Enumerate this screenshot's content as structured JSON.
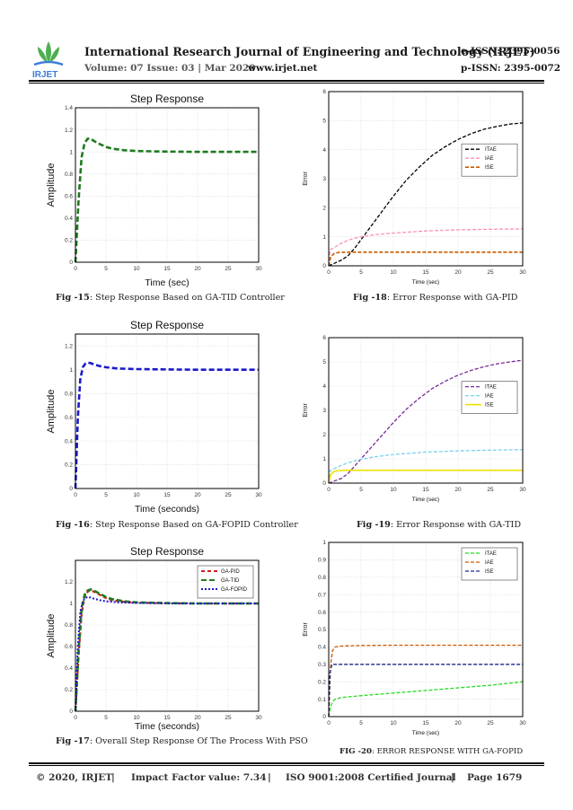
{
  "header": {
    "journal_title": "International Research Journal of Engineering and Technology (IRJET)",
    "e_issn": "e-ISSN: 2395-0056",
    "p_issn": "p-ISSN: 2395-0072",
    "volume": "Volume: 07 Issue: 03 | Mar 2020",
    "website": "www.irjet.net",
    "logo_text": "IRJET"
  },
  "captions": {
    "fig15_label": "Fig -15",
    "fig15_text": ": Step Response Based on GA-TID Controller",
    "fig16_label": "Fig -16",
    "fig16_text": ": Step Response Based on GA-FOPID Controller",
    "fig17_label": "Fig -17",
    "fig17_text": ": Overall Step Response Of The Process With PSO",
    "fig18_label": "Fig -18",
    "fig18_text": ": Error Response  with GA-PID",
    "fig19_label": "Fig -19",
    "fig19_text": ": Error Response  with GA-TID",
    "fig20_label": "Fig -20",
    "fig20_text": ": Error Response  with GA-FOPID"
  },
  "footer": {
    "copyright": "© 2020, IRJET",
    "sep1": "|",
    "impact": "Impact Factor value: 7.34",
    "sep2": "|",
    "iso": "ISO 9001:2008 Certified Journal",
    "sep3": "|",
    "page": "Page 1679"
  },
  "colors": {
    "green": "#1e7a1e",
    "blue": "#1a1acc",
    "red": "#cc2020",
    "black": "#000000",
    "pink": "#ff8fbf",
    "orange": "#c85a00",
    "purple": "#7a2a9a",
    "cyan": "#7ad0f0",
    "yellow": "#f0e000",
    "lime": "#22dd22",
    "navy": "#1a2a8a"
  },
  "chart_data": [
    {
      "id": "fig15",
      "type": "line",
      "title": "Step Response",
      "xlabel": "Time (sec)",
      "ylabel": "Amplitude",
      "xlim": [
        0,
        30
      ],
      "ylim": [
        0,
        1.4
      ],
      "xticks": [
        0,
        5,
        10,
        15,
        20,
        25,
        30
      ],
      "yticks": [
        0,
        0.2,
        0.4,
        0.6,
        0.8,
        1,
        1.2,
        1.4
      ],
      "grid": true,
      "legend": "none",
      "series": [
        {
          "color": "#1e7a1e",
          "dash": "6,3",
          "width": 2.6,
          "x": [
            0,
            0.5,
            1,
            1.5,
            2,
            2.5,
            3,
            4,
            5,
            6,
            8,
            10,
            15,
            20,
            25,
            30
          ],
          "y": [
            0,
            0.55,
            0.95,
            1.08,
            1.12,
            1.12,
            1.1,
            1.07,
            1.045,
            1.03,
            1.015,
            1.008,
            1.003,
            1.0,
            1.0,
            1.0
          ]
        }
      ]
    },
    {
      "id": "fig16",
      "type": "line",
      "title": "Step Response",
      "xlabel": "Time (seconds)",
      "ylabel": "Amplitude",
      "xlim": [
        0,
        30
      ],
      "ylim": [
        0,
        1.3
      ],
      "xticks": [
        0,
        5,
        10,
        15,
        20,
        25,
        30
      ],
      "yticks": [
        0,
        0.2,
        0.4,
        0.6,
        0.8,
        1,
        1.2
      ],
      "grid": true,
      "legend": "none",
      "series": [
        {
          "color": "#1a1acc",
          "dash": "6,3",
          "width": 2.6,
          "x": [
            0,
            0.4,
            0.8,
            1.2,
            1.6,
            2,
            2.5,
            3,
            4,
            5,
            7,
            10,
            15,
            20,
            25,
            30
          ],
          "y": [
            0,
            0.6,
            0.92,
            1.02,
            1.05,
            1.06,
            1.055,
            1.045,
            1.03,
            1.02,
            1.01,
            1.005,
            1.002,
            1.0,
            1.0,
            1.0
          ]
        }
      ]
    },
    {
      "id": "fig17",
      "type": "line",
      "title": "Step Response",
      "xlabel": "Time (seconds)",
      "ylabel": "Amplitude",
      "xlim": [
        0,
        30
      ],
      "ylim": [
        0,
        1.4
      ],
      "xticks": [
        0,
        5,
        10,
        15,
        20,
        25,
        30
      ],
      "yticks": [
        0,
        0.2,
        0.4,
        0.6,
        0.8,
        1,
        1.2
      ],
      "grid": true,
      "legend": "top-right",
      "series": [
        {
          "name": "GA-PID",
          "color": "#cc2020",
          "dash": "4,3",
          "width": 2.2,
          "x": [
            0,
            0.5,
            1,
            1.5,
            2,
            2.5,
            3,
            4,
            5,
            6,
            8,
            10,
            15,
            20,
            25,
            30
          ],
          "y": [
            0,
            0.5,
            0.9,
            1.06,
            1.11,
            1.12,
            1.11,
            1.08,
            1.05,
            1.03,
            1.015,
            1.007,
            1.002,
            1.0,
            1.0,
            1.0
          ]
        },
        {
          "name": "GA-TID",
          "color": "#1e7a1e",
          "dash": "6,3",
          "width": 2.6,
          "x": [
            0,
            0.5,
            1,
            1.5,
            2,
            2.5,
            3,
            4,
            5,
            6,
            8,
            10,
            15,
            20,
            25,
            30
          ],
          "y": [
            0,
            0.55,
            0.95,
            1.08,
            1.12,
            1.13,
            1.12,
            1.09,
            1.06,
            1.04,
            1.02,
            1.01,
            1.003,
            1.0,
            1.0,
            1.0
          ]
        },
        {
          "name": "GA-FOPID",
          "color": "#1a1acc",
          "dash": "2,2",
          "width": 2.0,
          "x": [
            0,
            0.4,
            0.8,
            1.2,
            1.6,
            2,
            2.5,
            3,
            4,
            5,
            7,
            10,
            15,
            20,
            25,
            30
          ],
          "y": [
            0,
            0.6,
            0.92,
            1.02,
            1.05,
            1.06,
            1.055,
            1.045,
            1.03,
            1.02,
            1.01,
            1.005,
            1.002,
            1.0,
            1.0,
            1.0
          ]
        }
      ]
    },
    {
      "id": "fig18",
      "type": "line",
      "title": "",
      "xlabel": "Time (sec)",
      "ylabel": "Error",
      "xlim": [
        0,
        30
      ],
      "ylim": [
        0,
        6
      ],
      "xticks": [
        0,
        5,
        10,
        15,
        20,
        25,
        30
      ],
      "yticks": [
        0,
        1,
        2,
        3,
        4,
        5,
        6
      ],
      "grid": true,
      "legend": "right",
      "series": [
        {
          "name": "ITAE",
          "color": "#000000",
          "dash": "4,2",
          "width": 1.3,
          "x": [
            0,
            1,
            2,
            3,
            4,
            5,
            6,
            8,
            10,
            12,
            14,
            16,
            18,
            20,
            22,
            24,
            26,
            28,
            30
          ],
          "y": [
            0,
            0.1,
            0.2,
            0.35,
            0.6,
            0.9,
            1.2,
            1.8,
            2.4,
            2.95,
            3.4,
            3.8,
            4.1,
            4.35,
            4.55,
            4.7,
            4.8,
            4.88,
            4.92
          ]
        },
        {
          "name": "IAE",
          "color": "#ff8fbf",
          "dash": "4,2",
          "width": 1.3,
          "x": [
            0,
            0.2,
            1,
            2,
            3,
            4,
            5,
            7,
            10,
            15,
            20,
            25,
            30
          ],
          "y": [
            0,
            0.55,
            0.65,
            0.78,
            0.88,
            0.95,
            1.0,
            1.07,
            1.13,
            1.2,
            1.24,
            1.26,
            1.27
          ]
        },
        {
          "name": "ISE",
          "color": "#c85a00",
          "dash": "4,2",
          "width": 1.6,
          "x": [
            0,
            0.3,
            0.8,
            1.5,
            3,
            5,
            10,
            15,
            20,
            25,
            30
          ],
          "y": [
            0,
            0.3,
            0.42,
            0.46,
            0.47,
            0.47,
            0.47,
            0.47,
            0.47,
            0.47,
            0.47
          ]
        }
      ]
    },
    {
      "id": "fig19",
      "type": "line",
      "title": "",
      "xlabel": "Time (sec)",
      "ylabel": "Error",
      "xlim": [
        0,
        30
      ],
      "ylim": [
        0,
        6
      ],
      "xticks": [
        0,
        5,
        10,
        15,
        20,
        25,
        30
      ],
      "yticks": [
        0,
        1,
        2,
        3,
        4,
        5,
        6
      ],
      "grid": true,
      "legend": "right",
      "series": [
        {
          "name": "ITAE",
          "color": "#7a2a9a",
          "dash": "4,2",
          "width": 1.3,
          "x": [
            0,
            1,
            2,
            3,
            4,
            5,
            6,
            8,
            10,
            12,
            14,
            16,
            18,
            20,
            22,
            24,
            26,
            28,
            30
          ],
          "y": [
            0,
            0.1,
            0.2,
            0.4,
            0.7,
            1.0,
            1.3,
            1.9,
            2.5,
            3.05,
            3.5,
            3.9,
            4.2,
            4.45,
            4.65,
            4.8,
            4.92,
            5.0,
            5.07
          ]
        },
        {
          "name": "IAE",
          "color": "#7ad0f0",
          "dash": "4,2",
          "width": 1.3,
          "x": [
            0,
            0.2,
            1,
            2,
            3,
            4,
            5,
            7,
            10,
            15,
            20,
            25,
            30
          ],
          "y": [
            0,
            0.5,
            0.62,
            0.74,
            0.84,
            0.92,
            0.98,
            1.08,
            1.18,
            1.28,
            1.33,
            1.36,
            1.38
          ]
        },
        {
          "name": "ISE",
          "color": "#f0e000",
          "dash": "",
          "width": 1.6,
          "x": [
            0,
            0.3,
            0.8,
            1.5,
            3,
            5,
            10,
            15,
            20,
            25,
            30
          ],
          "y": [
            0,
            0.35,
            0.48,
            0.52,
            0.53,
            0.53,
            0.53,
            0.53,
            0.53,
            0.53,
            0.53
          ]
        }
      ]
    },
    {
      "id": "fig20",
      "type": "line",
      "title": "",
      "xlabel": "Time (sec)",
      "ylabel": "Error",
      "xlim": [
        0,
        30
      ],
      "ylim": [
        0,
        1
      ],
      "xticks": [
        0,
        5,
        10,
        15,
        20,
        25,
        30
      ],
      "yticks": [
        0,
        0.1,
        0.2,
        0.3,
        0.4,
        0.5,
        0.6,
        0.7,
        0.8,
        0.9,
        1
      ],
      "grid": true,
      "legend": "top-right",
      "series": [
        {
          "name": "ITAE",
          "color": "#22dd22",
          "dash": "4,2",
          "width": 1.3,
          "x": [
            0,
            0.3,
            0.7,
            1,
            2,
            5,
            10,
            15,
            20,
            25,
            30
          ],
          "y": [
            0,
            0.06,
            0.09,
            0.1,
            0.11,
            0.12,
            0.135,
            0.15,
            0.165,
            0.18,
            0.2
          ]
        },
        {
          "name": "IAE",
          "color": "#c85a00",
          "dash": "4,2",
          "width": 1.3,
          "x": [
            0,
            0.3,
            0.6,
            1,
            2,
            5,
            10,
            15,
            20,
            25,
            30
          ],
          "y": [
            0,
            0.3,
            0.38,
            0.4,
            0.405,
            0.408,
            0.41,
            0.41,
            0.41,
            0.41,
            0.41
          ]
        },
        {
          "name": "ISE",
          "color": "#1a2a8a",
          "dash": "4,2",
          "width": 1.3,
          "x": [
            0,
            0.2,
            0.5,
            1,
            2,
            5,
            10,
            15,
            20,
            25,
            30
          ],
          "y": [
            0,
            0.25,
            0.3,
            0.3,
            0.3,
            0.3,
            0.3,
            0.3,
            0.3,
            0.3,
            0.3
          ]
        }
      ]
    }
  ]
}
